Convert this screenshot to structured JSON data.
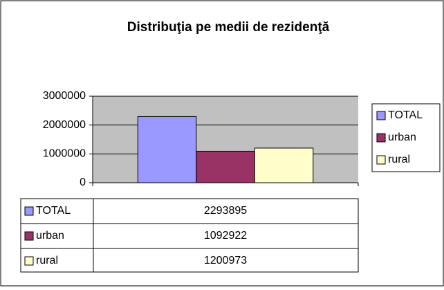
{
  "chart_data": {
    "type": "bar",
    "title": "Distribuţia pe medii de rezidenţă",
    "categories": [
      null
    ],
    "series": [
      {
        "name": "TOTAL",
        "color": "#9999ff",
        "values": [
          2293895
        ]
      },
      {
        "name": "urban",
        "color": "#993366",
        "values": [
          1092922
        ]
      },
      {
        "name": "rural",
        "color": "#ffffcc",
        "values": [
          1200973
        ]
      }
    ],
    "ylim": [
      0,
      3000000
    ],
    "yticks": [
      0,
      1000000,
      2000000,
      3000000
    ],
    "grid": true,
    "legend": "right"
  }
}
